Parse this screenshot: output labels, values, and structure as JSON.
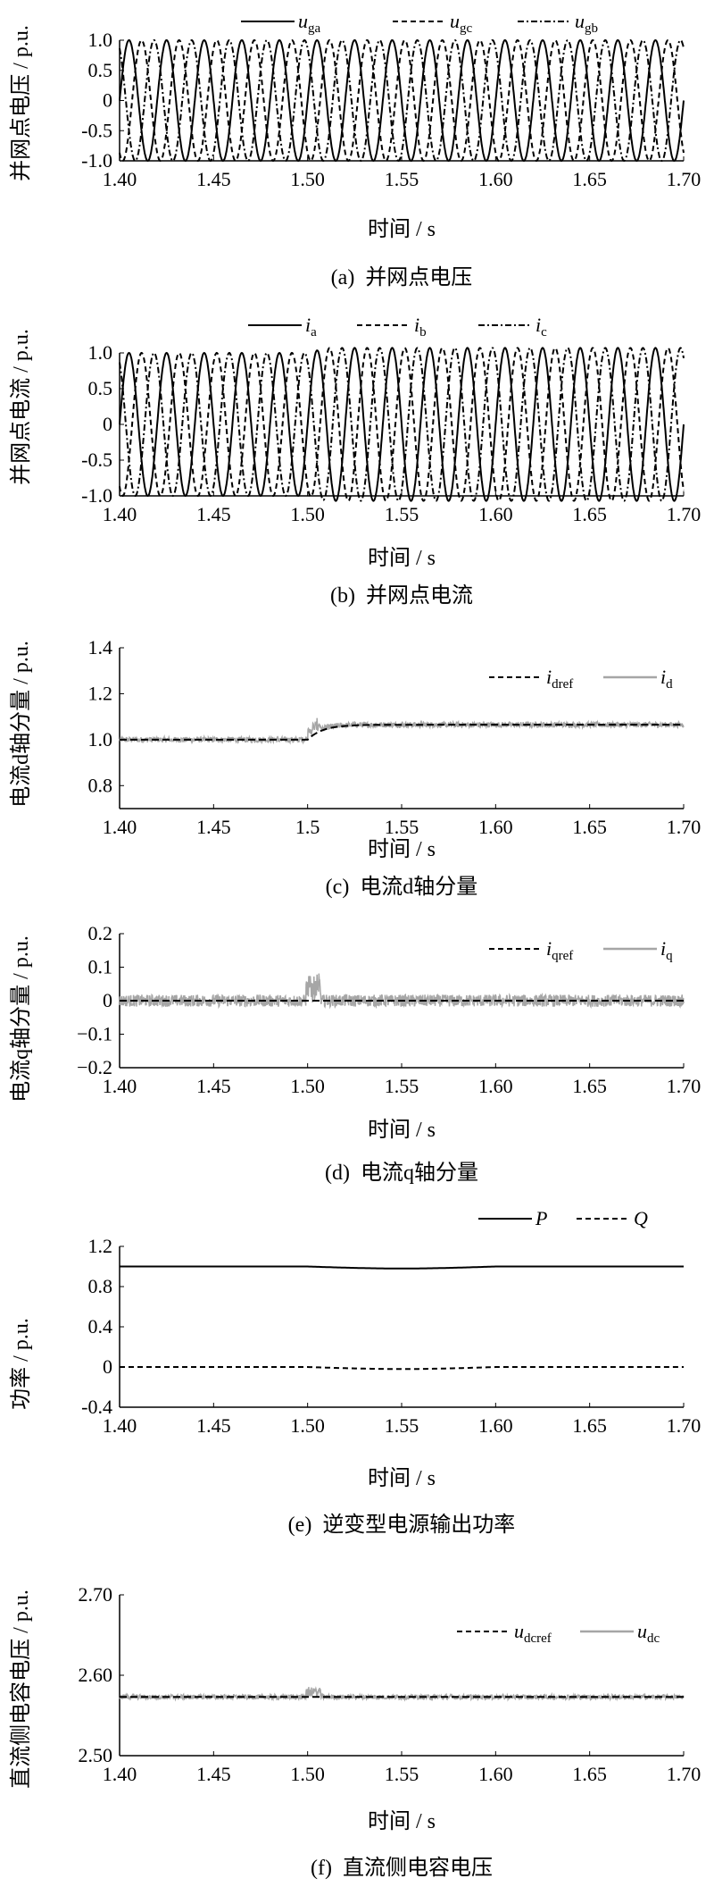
{
  "charts": [
    {
      "id": "a",
      "caption_num": "(a)",
      "caption": "并网点电压",
      "ylabel": "并网点电压 / p.u.",
      "xlabel": "时间 / s",
      "type": "line",
      "kind": "sine",
      "xlim": [
        1.4,
        1.7
      ],
      "xticks": [
        "1.40",
        "1.45",
        "1.50",
        "1.55",
        "1.60",
        "1.65",
        "1.70"
      ],
      "ylim": [
        -1.0,
        1.0
      ],
      "yticks": [
        "-1.0",
        "-0.5",
        "0",
        "0.5",
        "1.0"
      ],
      "frequency_hz": 50,
      "amplitude_before": 1.0,
      "amplitude_after": 1.0,
      "legend": [
        {
          "main": "u",
          "sub": "ga",
          "style": "solid"
        },
        {
          "main": "u",
          "sub": "gc",
          "style": "dashed"
        },
        {
          "main": "u",
          "sub": "gb",
          "style": "dashdot"
        }
      ]
    },
    {
      "id": "b",
      "caption_num": "(b)",
      "caption": "并网点电流",
      "ylabel": "并网点电流 / p.u.",
      "xlabel": "时间 / s",
      "type": "line",
      "kind": "sine",
      "xlim": [
        1.4,
        1.7
      ],
      "xticks": [
        "1.40",
        "1.45",
        "1.50",
        "1.55",
        "1.60",
        "1.65",
        "1.70"
      ],
      "ylim": [
        -1.0,
        1.0
      ],
      "yticks": [
        "-1.0",
        "-0.5",
        "0",
        "0.5",
        "1.0"
      ],
      "frequency_hz": 50,
      "amplitude_before": 1.0,
      "amplitude_after": 1.07,
      "legend": [
        {
          "main": "i",
          "sub": "a",
          "style": "solid"
        },
        {
          "main": "i",
          "sub": "b",
          "style": "dashed"
        },
        {
          "main": "i",
          "sub": "c",
          "style": "dashdot"
        }
      ]
    },
    {
      "id": "c",
      "caption_num": "(c)",
      "caption": "电流d轴分量",
      "ylabel": "电流d轴分量 / p.u.",
      "xlabel": "时间 / s",
      "type": "line",
      "kind": "ref",
      "xlim": [
        1.4,
        1.7
      ],
      "xticks": [
        "1.40",
        "1.45",
        "1.5",
        "1.55",
        "1.60",
        "1.65",
        "1.70"
      ],
      "ylim": [
        0.7,
        1.4
      ],
      "yticks": [
        "0.8",
        "1.0",
        "1.2",
        "1.4"
      ],
      "ref_before": 1.0,
      "ref_after": 1.065,
      "noise": 0.012,
      "legend": [
        {
          "main": "i",
          "sub": "dref",
          "style": "dashed"
        },
        {
          "main": "i",
          "sub": "d",
          "style": "gray"
        }
      ]
    },
    {
      "id": "d",
      "caption_num": "(d)",
      "caption": "电流q轴分量",
      "ylabel": "电流q轴分量 / p.u.",
      "xlabel": "时间 / s",
      "type": "line",
      "kind": "ref",
      "xlim": [
        1.4,
        1.7
      ],
      "xticks": [
        "1.40",
        "1.45",
        "1.50",
        "1.55",
        "1.60",
        "1.65",
        "1.70"
      ],
      "ylim": [
        -0.2,
        0.2
      ],
      "yticks": [
        "−0.2",
        "−0.1",
        "0",
        "0.1",
        "0.2"
      ],
      "ref_before": 0.0,
      "ref_after": 0.0,
      "noise": 0.018,
      "legend": [
        {
          "main": "i",
          "sub": "qref",
          "style": "dashed"
        },
        {
          "main": "i",
          "sub": "q",
          "style": "gray"
        }
      ]
    },
    {
      "id": "e",
      "caption_num": "(e)",
      "caption": "逆变型电源输出功率",
      "ylabel": "功率 / p.u.",
      "xlabel": "时间 / s",
      "type": "line",
      "kind": "power",
      "xlim": [
        1.4,
        1.7
      ],
      "xticks": [
        "1.40",
        "1.45",
        "1.50",
        "1.55",
        "1.60",
        "1.65",
        "1.70"
      ],
      "ylim": [
        -0.4,
        1.2
      ],
      "yticks": [
        "-0.4",
        "0",
        "0.4",
        "0.8",
        "1.2"
      ],
      "series": [
        {
          "name": "P",
          "value": 1.0
        },
        {
          "name": "Q",
          "value": 0.0
        }
      ],
      "legend": [
        {
          "main": "P",
          "sub": "",
          "style": "solid"
        },
        {
          "main": "Q",
          "sub": "",
          "style": "dashed"
        }
      ]
    },
    {
      "id": "f",
      "caption_num": "(f)",
      "caption": "直流侧电容电压",
      "ylabel": "直流侧电容电压 / p.u.",
      "xlabel": "时间 / s",
      "type": "line",
      "kind": "ref",
      "xlim": [
        1.4,
        1.7
      ],
      "xticks": [
        "1.40",
        "1.45",
        "1.50",
        "1.55",
        "1.60",
        "1.65",
        "1.70"
      ],
      "ylim": [
        2.5,
        2.7
      ],
      "yticks": [
        "2.50",
        "2.60",
        "2.70"
      ],
      "ref_before": 2.573,
      "ref_after": 2.573,
      "noise": 0.003,
      "legend": [
        {
          "main": "u",
          "sub": "dcref",
          "style": "dashed"
        },
        {
          "main": "u",
          "sub": "dc",
          "style": "gray"
        }
      ]
    }
  ]
}
